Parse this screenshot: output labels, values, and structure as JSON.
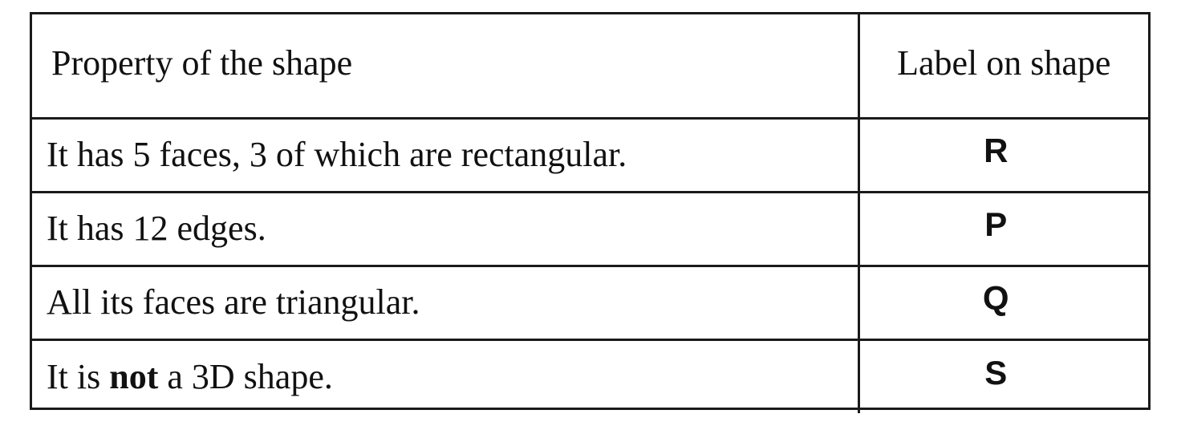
{
  "table": {
    "header": {
      "property": "Property of the shape",
      "label": "Label on shape"
    },
    "rows": [
      {
        "property_before": "It has 5 faces, 3 of which are rectangular.",
        "property_bold": "",
        "property_after": "",
        "label": "R"
      },
      {
        "property_before": "It has 12 edges.",
        "property_bold": "",
        "property_after": "",
        "label": "P"
      },
      {
        "property_before": "All its faces are triangular.",
        "property_bold": "",
        "property_after": "",
        "label": "Q"
      },
      {
        "property_before": "It is ",
        "property_bold": "not",
        "property_after": " a 3D shape.",
        "label": "S"
      }
    ]
  }
}
